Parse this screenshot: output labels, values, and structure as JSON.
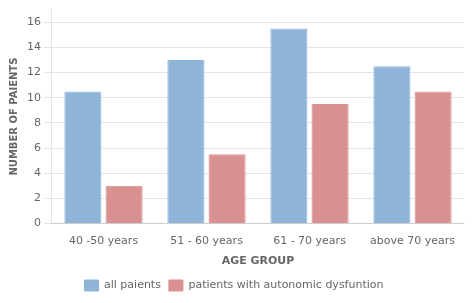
{
  "chart_data": {
    "type": "bar",
    "categories": [
      "40 -50 years",
      "51 - 60 years",
      "61 - 70 years",
      "above 70 years"
    ],
    "series": [
      {
        "name": "all paients",
        "color": "#8EB4D8",
        "values": [
          10.5,
          13,
          15.5,
          12.5
        ]
      },
      {
        "name": "patients with autonomic dysfuntion",
        "color": "#D99090",
        "values": [
          3,
          5.5,
          9.5,
          10.5
        ]
      }
    ],
    "xlabel": "AGE GROUP",
    "ylabel": "NUMBER OF PAIENTS",
    "ylim": [
      0,
      17
    ],
    "yticks": [
      0,
      2,
      4,
      6,
      8,
      10,
      12,
      14,
      16
    ],
    "grid": true,
    "legend": "bottom"
  }
}
